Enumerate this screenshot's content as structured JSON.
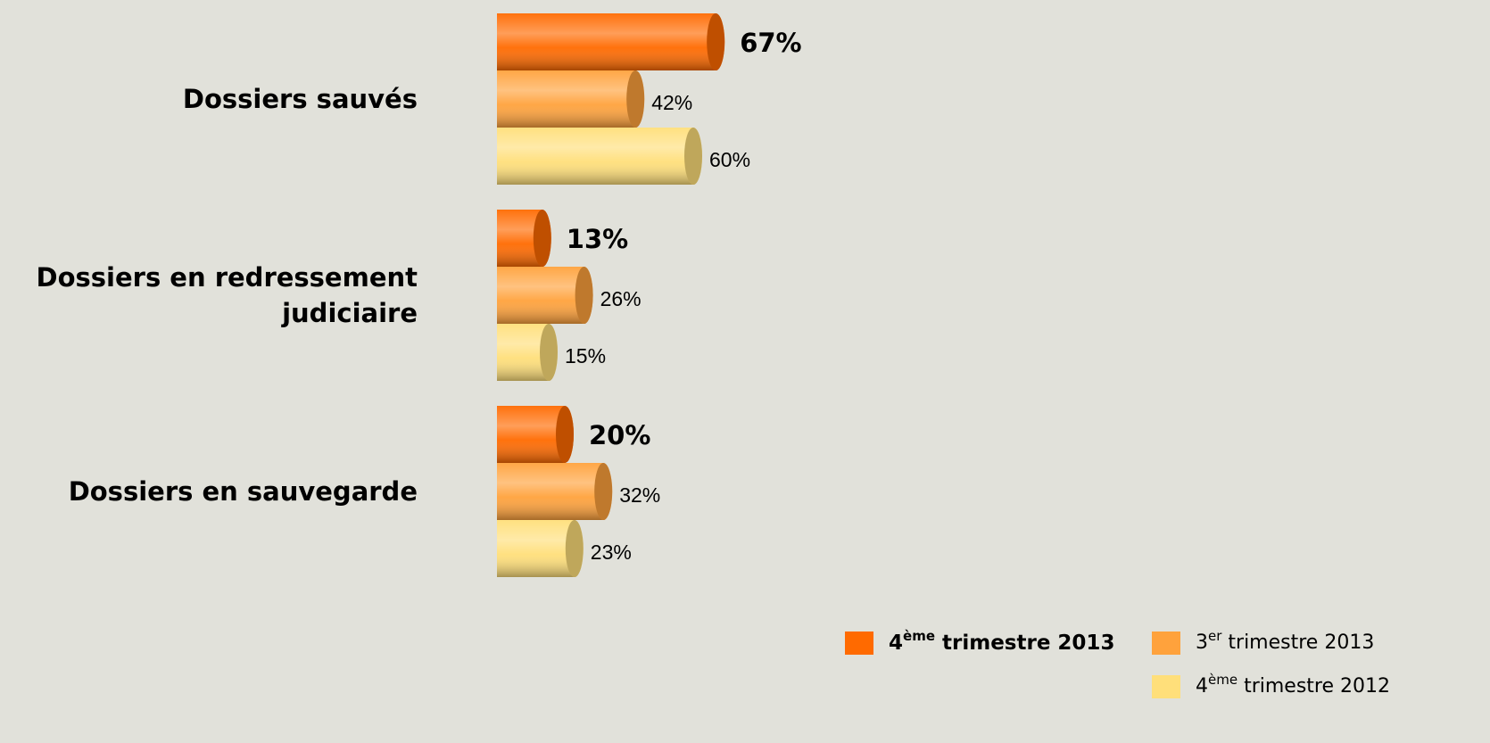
{
  "chart_data": {
    "type": "bar",
    "orientation": "horizontal",
    "categories": [
      "Dossiers sauvés",
      "Dossiers en redressement judiciaire",
      "Dossiers en sauvegarde"
    ],
    "series": [
      {
        "name": "4ème trimestre 2013",
        "color": "#ff6a00",
        "values": [
          67,
          13,
          20
        ],
        "value_labels": [
          "67%",
          "13%",
          "20%"
        ]
      },
      {
        "name": "3er trimestre 2013",
        "color": "#ffa23c",
        "values": [
          42,
          26,
          32
        ],
        "value_labels": [
          "42%",
          "26%",
          "32%"
        ]
      },
      {
        "name": "4ème trimestre 2012",
        "color": "#ffdf7a",
        "values": [
          60,
          15,
          23
        ],
        "value_labels": [
          "60%",
          "15%",
          "23%"
        ]
      }
    ],
    "legend": "bottom-right"
  }
}
